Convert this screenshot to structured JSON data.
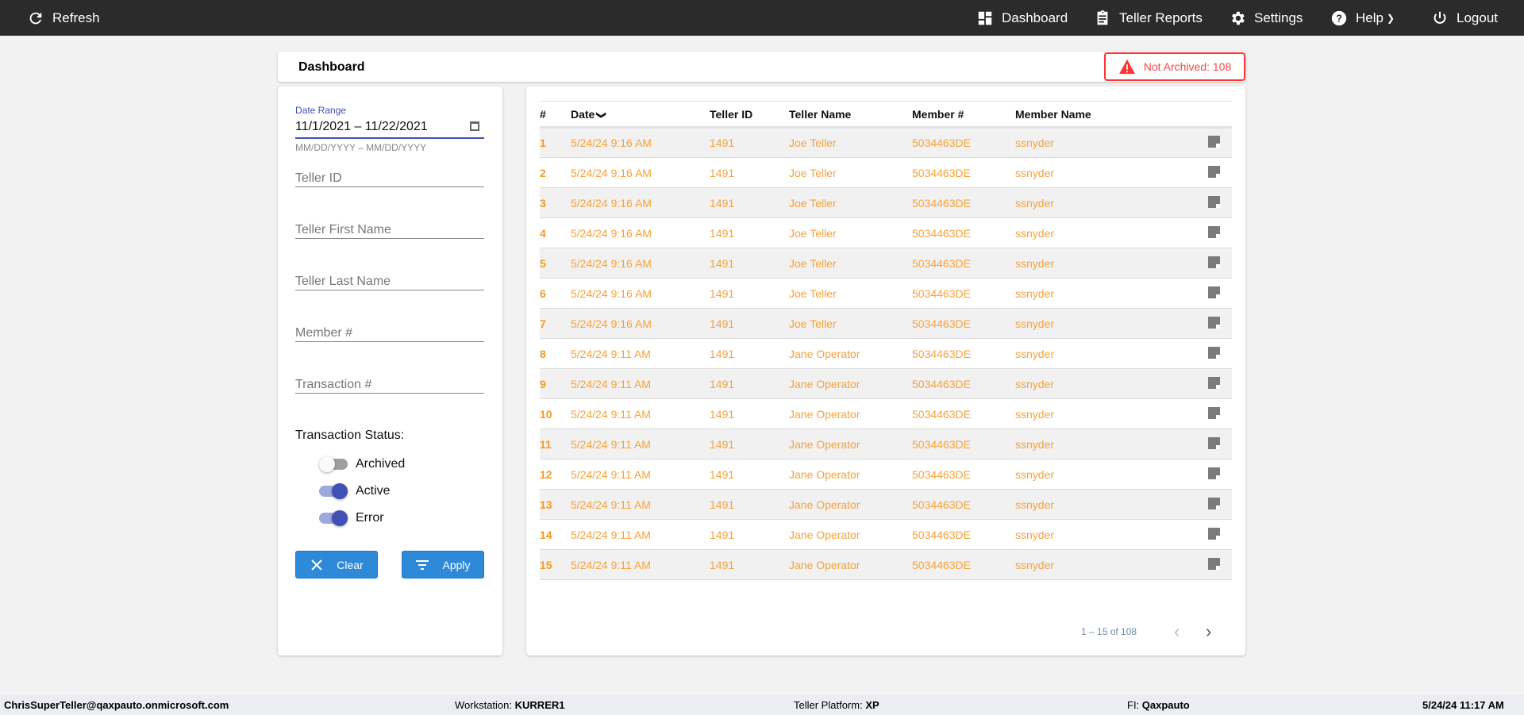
{
  "nav": {
    "refresh": "Refresh",
    "dashboard": "Dashboard",
    "teller_reports": "Teller Reports",
    "settings": "Settings",
    "help": "Help",
    "logout": "Logout"
  },
  "header": {
    "title": "Dashboard",
    "badge": "Not Archived: 108"
  },
  "filters": {
    "date_label": "Date Range",
    "date_value": "11/1/2021 – 11/22/2021",
    "date_hint": "MM/DD/YYYY – MM/DD/YYYY",
    "teller_id": "Teller ID",
    "first_name": "Teller First Name",
    "last_name": "Teller Last Name",
    "member": "Member #",
    "transaction": "Transaction #",
    "status_label": "Transaction Status:",
    "toggles": [
      {
        "label": "Archived",
        "on": false
      },
      {
        "label": "Active",
        "on": true
      },
      {
        "label": "Error",
        "on": true
      }
    ],
    "clear": "Clear",
    "apply": "Apply"
  },
  "table": {
    "headers": [
      "#",
      "Date",
      "Teller ID",
      "Teller Name",
      "Member #",
      "Member Name"
    ],
    "rows": [
      [
        "1",
        "5/24/24 9:16 AM",
        "1491",
        "Joe Teller",
        "5034463DE",
        "ssnyder"
      ],
      [
        "2",
        "5/24/24 9:16 AM",
        "1491",
        "Joe Teller",
        "5034463DE",
        "ssnyder"
      ],
      [
        "3",
        "5/24/24 9:16 AM",
        "1491",
        "Joe Teller",
        "5034463DE",
        "ssnyder"
      ],
      [
        "4",
        "5/24/24 9:16 AM",
        "1491",
        "Joe Teller",
        "5034463DE",
        "ssnyder"
      ],
      [
        "5",
        "5/24/24 9:16 AM",
        "1491",
        "Joe Teller",
        "5034463DE",
        "ssnyder"
      ],
      [
        "6",
        "5/24/24 9:16 AM",
        "1491",
        "Joe Teller",
        "5034463DE",
        "ssnyder"
      ],
      [
        "7",
        "5/24/24 9:16 AM",
        "1491",
        "Joe Teller",
        "5034463DE",
        "ssnyder"
      ],
      [
        "8",
        "5/24/24 9:11 AM",
        "1491",
        "Jane Operator",
        "5034463DE",
        "ssnyder"
      ],
      [
        "9",
        "5/24/24 9:11 AM",
        "1491",
        "Jane Operator",
        "5034463DE",
        "ssnyder"
      ],
      [
        "10",
        "5/24/24 9:11 AM",
        "1491",
        "Jane Operator",
        "5034463DE",
        "ssnyder"
      ],
      [
        "11",
        "5/24/24 9:11 AM",
        "1491",
        "Jane Operator",
        "5034463DE",
        "ssnyder"
      ],
      [
        "12",
        "5/24/24 9:11 AM",
        "1491",
        "Jane Operator",
        "5034463DE",
        "ssnyder"
      ],
      [
        "13",
        "5/24/24 9:11 AM",
        "1491",
        "Jane Operator",
        "5034463DE",
        "ssnyder"
      ],
      [
        "14",
        "5/24/24 9:11 AM",
        "1491",
        "Jane Operator",
        "5034463DE",
        "ssnyder"
      ],
      [
        "15",
        "5/24/24 9:11 AM",
        "1491",
        "Jane Operator",
        "5034463DE",
        "ssnyder"
      ]
    ],
    "pagination": "1 – 15 of 108"
  },
  "footer": {
    "user": "ChrisSuperTeller@qaxpauto.onmicrosoft.com",
    "workstation_label": "Workstation:",
    "workstation": "KURRER1",
    "platform_label": "Teller Platform:",
    "platform": "XP",
    "fi_label": "FI:",
    "fi": "Qaxpauto",
    "datetime": "5/24/24 11:17 AM"
  },
  "colors": {
    "accent": "#3f51b5",
    "row_text": "#f7a23a",
    "alert": "#ff3333",
    "button": "#2e8ad8"
  }
}
